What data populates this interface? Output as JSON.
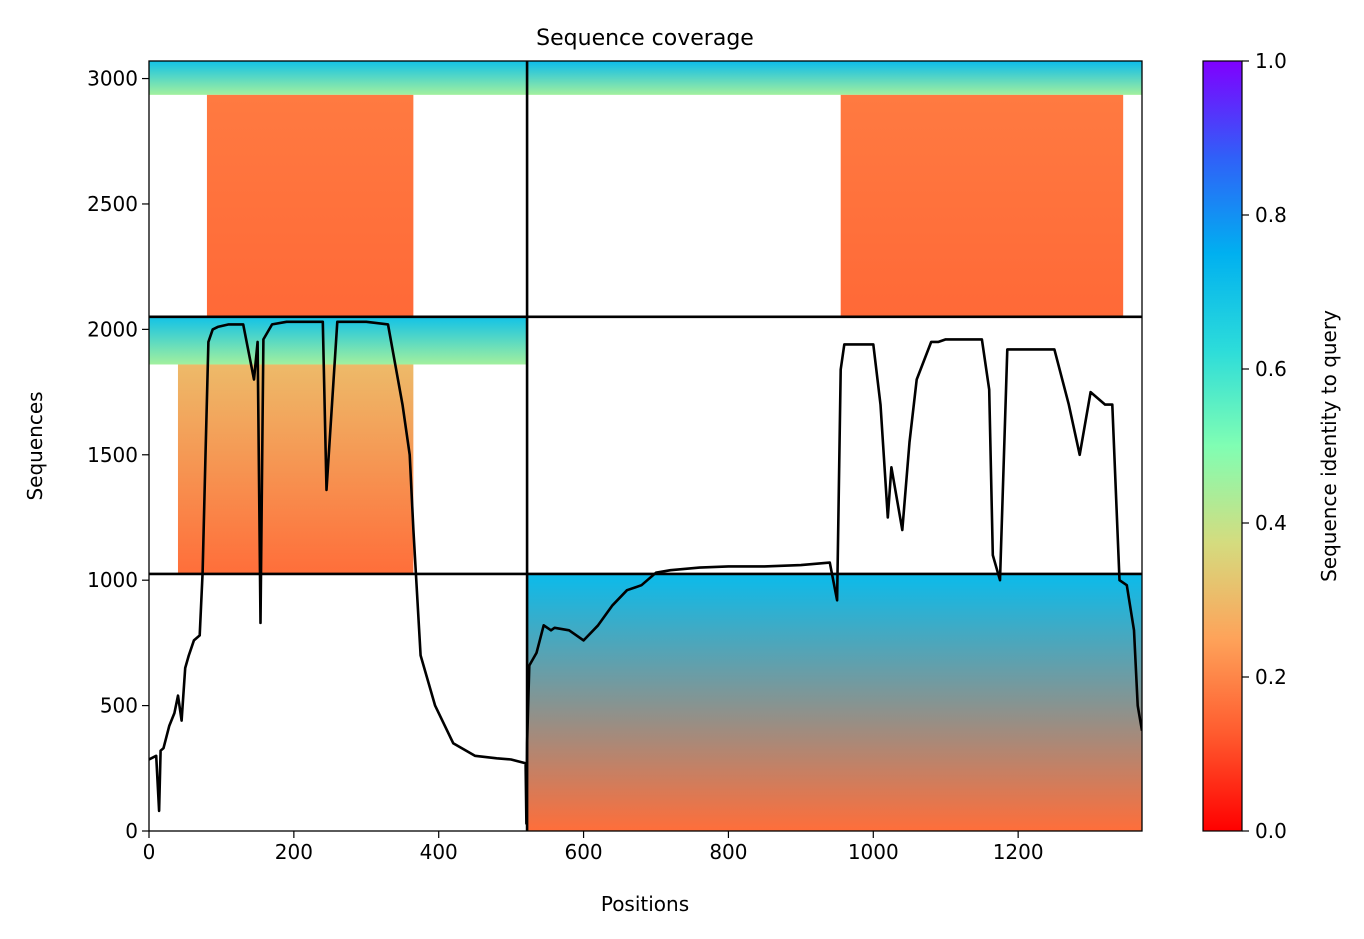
{
  "chart_data": {
    "type": "heatmap",
    "title": "Sequence coverage",
    "xlabel": "Positions",
    "ylabel": "Sequences",
    "xlim": [
      0,
      1371
    ],
    "ylim": [
      0,
      3070
    ],
    "x_ticks": [
      0,
      200,
      400,
      600,
      800,
      1000,
      1200
    ],
    "y_ticks": [
      0,
      500,
      1000,
      1500,
      2000,
      2500,
      3000
    ],
    "colorbar": {
      "label": "Sequence identity to query",
      "range": [
        0,
        1
      ],
      "ticks": [
        "0.0",
        "0.2",
        "0.4",
        "0.6",
        "0.8",
        "1.0"
      ],
      "colormap": "rainbow"
    },
    "block_separators": {
      "x": [
        522
      ],
      "y": [
        1025,
        2050
      ]
    },
    "blocks": [
      {
        "x": [
          0,
          522
        ],
        "y": [
          2935,
          3070
        ],
        "identity_top": 0.7,
        "identity_bottom": 0.45
      },
      {
        "x": [
          522,
          1371
        ],
        "y": [
          2935,
          3070
        ],
        "identity_top": 0.72,
        "identity_bottom": 0.45
      },
      {
        "x": [
          80,
          365
        ],
        "y": [
          2050,
          2935
        ],
        "identity_top": 0.18,
        "identity_bottom": 0.15
      },
      {
        "x": [
          955,
          1345
        ],
        "y": [
          2050,
          2935
        ],
        "identity_top": 0.18,
        "identity_bottom": 0.15
      },
      {
        "x": [
          0,
          522
        ],
        "y": [
          1860,
          2050
        ],
        "identity_top": 0.7,
        "identity_bottom": 0.45
      },
      {
        "x": [
          40,
          365
        ],
        "y": [
          1025,
          1860
        ],
        "identity_top": 0.3,
        "identity_bottom": 0.16
      },
      {
        "x": [
          522,
          1371
        ],
        "y": [
          0,
          1025
        ],
        "identity_top": 0.72,
        "identity_bottom": 0.16
      }
    ],
    "coverage_line": {
      "color": "#000000",
      "x": [
        0,
        10,
        14,
        16,
        20,
        28,
        35,
        40,
        45,
        50,
        55,
        62,
        70,
        74,
        78,
        82,
        88,
        95,
        110,
        130,
        145,
        150,
        154,
        158,
        170,
        190,
        200,
        210,
        220,
        240,
        245,
        260,
        300,
        330,
        350,
        355,
        360,
        365,
        375,
        395,
        420,
        450,
        480,
        500,
        520,
        521,
        522,
        525,
        535,
        545,
        555,
        560,
        580,
        600,
        620,
        640,
        660,
        680,
        700,
        720,
        760,
        800,
        850,
        900,
        940,
        950,
        955,
        960,
        1000,
        1010,
        1020,
        1025,
        1040,
        1050,
        1060,
        1080,
        1090,
        1100,
        1130,
        1150,
        1160,
        1165,
        1175,
        1185,
        1190,
        1200,
        1250,
        1270,
        1285,
        1300,
        1320,
        1330,
        1340,
        1350,
        1360,
        1365,
        1371
      ],
      "y": [
        285,
        300,
        80,
        320,
        330,
        420,
        470,
        540,
        440,
        650,
        700,
        760,
        780,
        1030,
        1500,
        1950,
        2000,
        2010,
        2020,
        2020,
        1800,
        1950,
        830,
        1960,
        2020,
        2030,
        2030,
        2030,
        2030,
        2030,
        1360,
        2030,
        2030,
        2020,
        1700,
        1600,
        1500,
        1200,
        700,
        500,
        350,
        300,
        290,
        285,
        270,
        30,
        350,
        660,
        710,
        820,
        800,
        810,
        800,
        760,
        820,
        900,
        960,
        980,
        1030,
        1040,
        1050,
        1055,
        1055,
        1060,
        1070,
        920,
        1840,
        1940,
        1940,
        1700,
        1250,
        1450,
        1200,
        1550,
        1800,
        1950,
        1950,
        1960,
        1960,
        1960,
        1760,
        1100,
        1000,
        1920,
        1920,
        1920,
        1920,
        1700,
        1500,
        1750,
        1700,
        1700,
        1000,
        980,
        800,
        500,
        400
      ]
    }
  }
}
